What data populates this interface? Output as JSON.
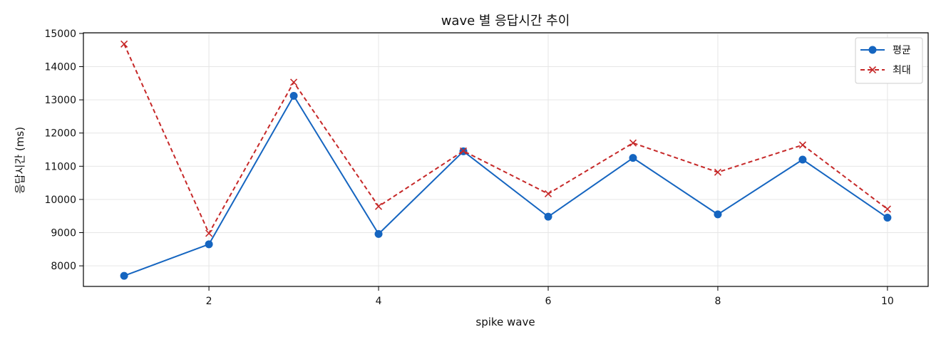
{
  "chart_data": {
    "type": "line",
    "title": "wave 별 응답시간 추이",
    "xlabel": "spike wave",
    "ylabel": "응답시간 (ms)",
    "x": [
      1,
      2,
      3,
      4,
      5,
      6,
      7,
      8,
      9,
      10
    ],
    "xlim": [
      0.52,
      10.48
    ],
    "ylim": [
      7380,
      15020
    ],
    "xticks": [
      2,
      4,
      6,
      8,
      10
    ],
    "yticks": [
      8000,
      9000,
      10000,
      11000,
      12000,
      13000,
      14000,
      15000
    ],
    "grid": true,
    "legend_position": "top-right",
    "series": [
      {
        "name": "평균",
        "color": "#1565c0",
        "line_style": "solid",
        "marker": "circle",
        "values": [
          7700,
          8650,
          13120,
          8960,
          11450,
          9480,
          11250,
          9550,
          11200,
          9450
        ]
      },
      {
        "name": "최대",
        "color": "#c62828",
        "line_style": "dashed",
        "marker": "x",
        "values": [
          14680,
          8980,
          13530,
          9790,
          11460,
          10170,
          11700,
          10820,
          11640,
          9710
        ]
      }
    ]
  }
}
